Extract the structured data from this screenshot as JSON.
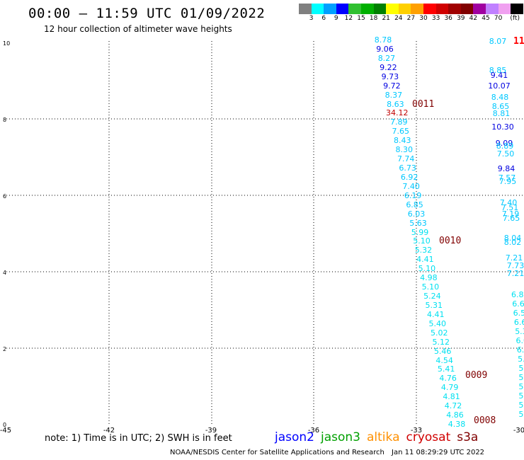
{
  "header": {
    "title": "00:00 – 11:59 UTC 01/09/2022",
    "subtitle": "12 hour collection of altimeter wave heights"
  },
  "legend": {
    "swatches": [
      "#808080",
      "#00ffff",
      "#00a0ff",
      "#0000ff",
      "#30c030",
      "#00b000",
      "#008000",
      "#ffff00",
      "#ffd000",
      "#ffa000",
      "#ff0000",
      "#d00000",
      "#a00000",
      "#800000",
      "#a000a0",
      "#c080ff",
      "#f0a0f0",
      "#000000"
    ],
    "labels": [
      "3",
      "6",
      "9",
      "12",
      "15",
      "18",
      "21",
      "24",
      "27",
      "30",
      "33",
      "36",
      "39",
      "42",
      "45",
      "70",
      "(ft)"
    ],
    "label_color": "#000000"
  },
  "axes": {
    "y_labels": [
      "10",
      "8",
      "6",
      "4",
      "2",
      "0"
    ],
    "x_labels": [
      "-45",
      "-42",
      "-39",
      "-36",
      "-33",
      "-30"
    ]
  },
  "colors": {
    "cyan": "#00c8ff",
    "light_cyan": "#00e0f0",
    "blue": "#0000e0",
    "dark_red": "#800000",
    "red": "#ff0000"
  },
  "track_a_values": [
    "8.78",
    "9.06",
    "8.27",
    "9.22",
    "9.73",
    "9.72",
    "8.37",
    "8.63",
    "34.12",
    "7.89",
    "7.65",
    "8.43",
    "8.30",
    "7.74",
    "6.73",
    "6.92",
    "7.40",
    "6.19",
    "6.85",
    "6.03",
    "5.63",
    "5.99",
    "5.10",
    "5.32",
    "4.41",
    "5.10",
    "4.98",
    "5.10",
    "5.24",
    "5.31",
    "4.41",
    "5.40",
    "5.02",
    "5.12",
    "5.46",
    "4.54",
    "5.41",
    "4.76",
    "4.79",
    "4.81",
    "4.72",
    "4.86",
    "4.38"
  ],
  "track_b_values": [
    "8.07",
    "8.85",
    "9.41",
    "10.07",
    "8.48",
    "8.65",
    "8.81",
    "10.30",
    "9.09",
    "8.89",
    "7.50",
    "9.84",
    "7.57",
    "7.95",
    "7.40",
    "7.51",
    "7.19",
    "7.65",
    "8.04",
    "8.02",
    "7.21",
    "7.73",
    "7.21"
  ],
  "track_b_partial": [
    "6.8",
    "6.6",
    "6.5",
    "6.6",
    "5.3",
    "6.0",
    "6.3",
    "5.",
    "5.",
    "5",
    "5",
    "5",
    "5",
    "5"
  ],
  "time_labels": [
    "0011",
    "0010",
    "0009",
    "0008",
    "11"
  ],
  "footer": {
    "note": "note:  1) Time is in UTC; 2) SWH is in feet",
    "satellites": [
      {
        "name": "jason2",
        "color": "#0000ff"
      },
      {
        "name": "jason3",
        "color": "#00a000"
      },
      {
        "name": "altika",
        "color": "#ff9000"
      },
      {
        "name": "cryosat",
        "color": "#d00000"
      },
      {
        "name": "s3a",
        "color": "#800000"
      }
    ],
    "credit": "NOAA/NESDIS Center for Satellite Applications and Research",
    "timestamp": "Jan 11 08:29:29 UTC 2022"
  }
}
